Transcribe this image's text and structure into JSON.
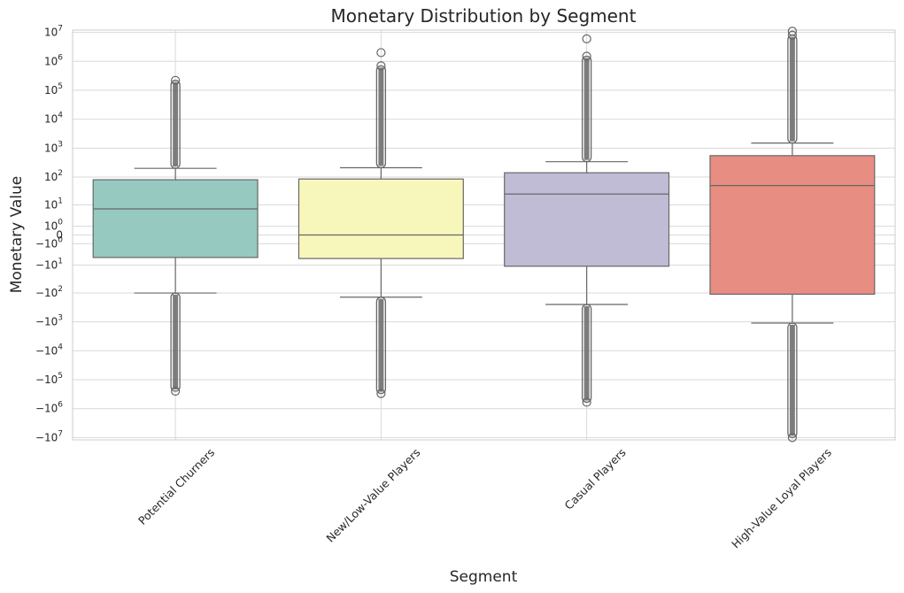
{
  "chart_data": {
    "type": "box",
    "title": "Monetary Distribution by Segment",
    "xlabel": "Segment",
    "ylabel": "Monetary Value",
    "yscale": "symlog",
    "linthresh": 1,
    "ylim": [
      -12000000,
      12000000
    ],
    "grid": true,
    "yticks": [
      {
        "value": 10000000,
        "base": "10",
        "exp": "7",
        "sign": ""
      },
      {
        "value": 1000000,
        "base": "10",
        "exp": "6",
        "sign": ""
      },
      {
        "value": 100000,
        "base": "10",
        "exp": "5",
        "sign": ""
      },
      {
        "value": 10000,
        "base": "10",
        "exp": "4",
        "sign": ""
      },
      {
        "value": 1000,
        "base": "10",
        "exp": "3",
        "sign": ""
      },
      {
        "value": 100,
        "base": "10",
        "exp": "2",
        "sign": ""
      },
      {
        "value": 10,
        "base": "10",
        "exp": "1",
        "sign": ""
      },
      {
        "value": 1,
        "base": "10",
        "exp": "0",
        "sign": ""
      },
      {
        "value": 0,
        "base": "0",
        "exp": "",
        "sign": ""
      },
      {
        "value": -1,
        "base": "10",
        "exp": "0",
        "sign": "−"
      },
      {
        "value": -10,
        "base": "10",
        "exp": "1",
        "sign": "−"
      },
      {
        "value": -100,
        "base": "10",
        "exp": "2",
        "sign": "−"
      },
      {
        "value": -1000,
        "base": "10",
        "exp": "3",
        "sign": "−"
      },
      {
        "value": -10000,
        "base": "10",
        "exp": "4",
        "sign": "−"
      },
      {
        "value": -100000,
        "base": "10",
        "exp": "5",
        "sign": "−"
      },
      {
        "value": -1000000,
        "base": "10",
        "exp": "6",
        "sign": "−"
      },
      {
        "value": -10000000,
        "base": "10",
        "exp": "7",
        "sign": "−"
      }
    ],
    "categories": [
      "Potential Churners",
      "New/Low-Value Players",
      "Casual Players",
      "High-Value Loyal Players"
    ],
    "boxes": [
      {
        "category": "Potential Churners",
        "color": "#96c9c0",
        "whisker_low": -100,
        "q1": -5,
        "median": 7,
        "q3": 80,
        "whisker_high": 200,
        "outliers_high": [
          200,
          220000
        ],
        "outliers_low": [
          -100,
          -250000
        ]
      },
      {
        "category": "New/Low-Value Players",
        "color": "#f7f7bc",
        "whisker_low": -140,
        "q1": -5.5,
        "median": 0,
        "q3": 85,
        "whisker_high": 210,
        "outliers_high": [
          210,
          700000,
          2000000
        ],
        "outliers_low": [
          -140,
          -300000
        ]
      },
      {
        "category": "Casual Players",
        "color": "#c0bcd6",
        "whisker_low": -250,
        "q1": -11,
        "median": 25,
        "q3": 140,
        "whisker_high": 340,
        "outliers_high": [
          340,
          1500000,
          6000000
        ],
        "outliers_low": [
          -250,
          -600000
        ]
      },
      {
        "category": "High-Value Loyal Players",
        "color": "#e88d82",
        "whisker_low": -1100,
        "q1": -110,
        "median": 50,
        "q3": 550,
        "whisker_high": 1500,
        "outliers_high": [
          1500,
          8000000,
          11000000
        ],
        "outliers_low": [
          -1100,
          -10000000
        ]
      }
    ]
  }
}
